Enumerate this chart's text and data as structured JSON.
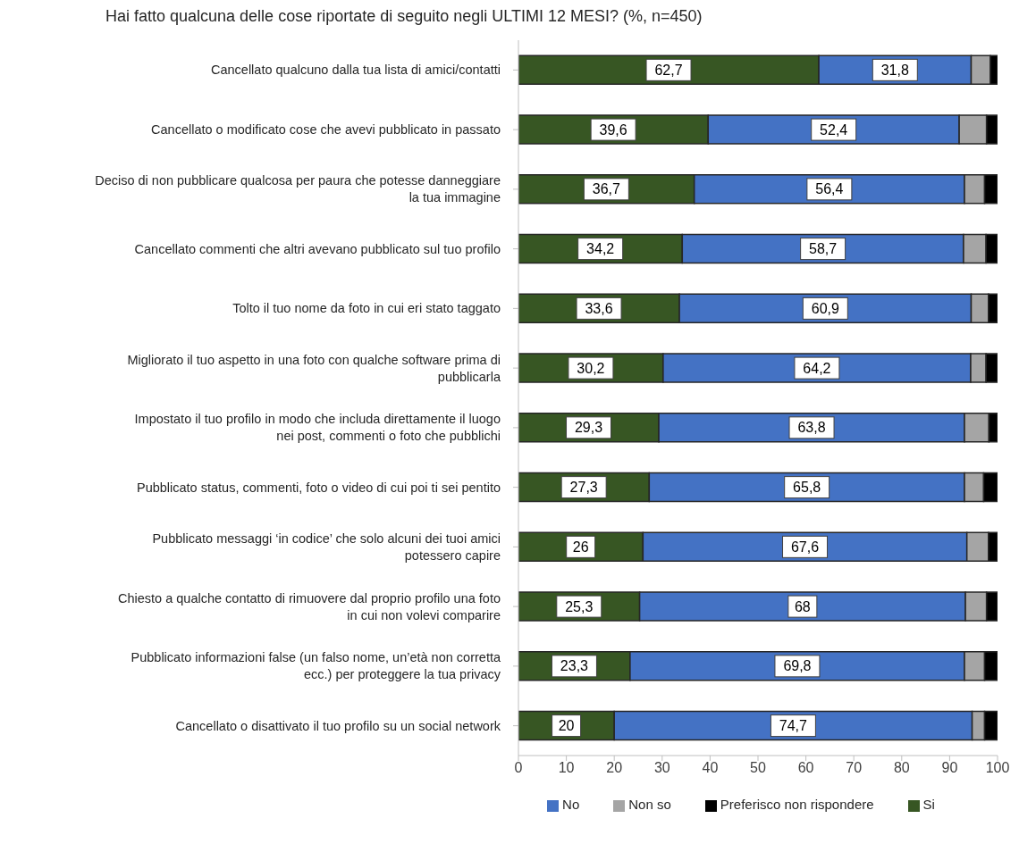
{
  "chart_data": {
    "type": "bar",
    "orientation": "horizontal",
    "stacked": true,
    "title": "Hai fatto qualcuna delle cose riportate di seguito negli ULTIMI 12 MESI? (%, n=450)",
    "categories": [
      "Cancellato qualcuno dalla tua lista di amici/contatti",
      "Cancellato o modificato cose che avevi pubblicato in passato",
      "Deciso di non pubblicare qualcosa per paura che potesse danneggiare la tua immagine",
      "Cancellato commenti che altri avevano pubblicato sul tuo profilo",
      "Tolto il tuo nome da foto in cui eri stato taggato",
      "Migliorato il tuo aspetto in una foto con qualche software prima di pubblicarla",
      "Impostato il tuo profilo in modo che includa direttamente il luogo nei post, commenti o foto che pubblichi",
      "Pubblicato status, commenti, foto o video di cui poi ti sei pentito",
      "Pubblicato messaggi ‘in codice’ che solo alcuni dei tuoi amici potessero capire",
      "Chiesto a qualche contatto di rimuovere dal proprio profilo una foto in cui non volevi comparire",
      "Pubblicato informazioni false (un falso nome, un’età non corretta ecc.) per proteggere la tua privacy",
      "Cancellato o disattivato il tuo profilo su un social network"
    ],
    "series": [
      {
        "name": "Si",
        "color": "#375623",
        "values": [
          62.7,
          39.6,
          36.7,
          34.2,
          33.6,
          30.2,
          29.3,
          27.3,
          26,
          25.3,
          23.3,
          20
        ],
        "value_labels": [
          "62,7",
          "39,6",
          "36,7",
          "34,2",
          "33,6",
          "30,2",
          "29,3",
          "27,3",
          "26",
          "25,3",
          "23,3",
          "20"
        ]
      },
      {
        "name": "No",
        "color": "#4472c4",
        "values": [
          31.8,
          52.4,
          56.4,
          58.7,
          60.9,
          64.2,
          63.8,
          65.8,
          67.6,
          68,
          69.8,
          74.7
        ],
        "value_labels": [
          "31,8",
          "52,4",
          "56,4",
          "58,7",
          "60,9",
          "64,2",
          "63,8",
          "65,8",
          "67,6",
          "68",
          "69,8",
          "74,7"
        ]
      },
      {
        "name": "Non so",
        "color": "#a5a5a5",
        "values": [
          4.0,
          5.7,
          4.2,
          4.7,
          3.6,
          3.2,
          5.1,
          4.0,
          4.5,
          4.4,
          4.2,
          2.6
        ]
      },
      {
        "name": "Preferisco non rispondere",
        "color": "#000000",
        "values": [
          1.5,
          2.3,
          2.7,
          2.4,
          1.9,
          2.4,
          1.8,
          2.9,
          1.9,
          2.3,
          2.7,
          2.7
        ]
      }
    ],
    "xlim": [
      0,
      100
    ],
    "xticks": [
      0,
      10,
      20,
      30,
      40,
      50,
      60,
      70,
      80,
      90,
      100
    ],
    "grid": false,
    "legend": "bottom"
  }
}
